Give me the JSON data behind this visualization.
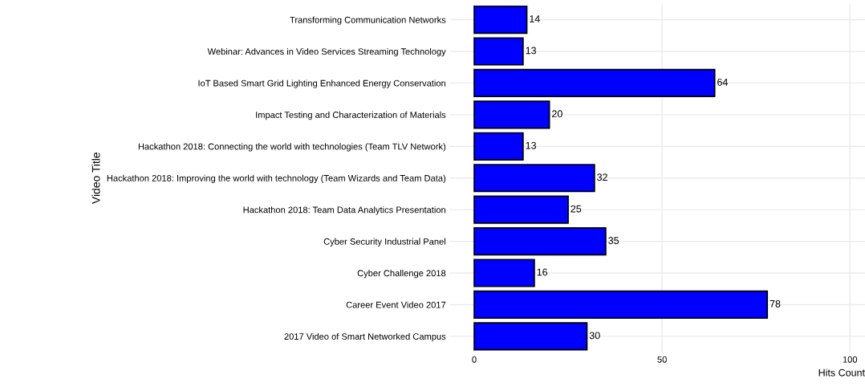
{
  "chart_data": {
    "type": "bar",
    "orientation": "horizontal",
    "xlabel": "Hits Count",
    "ylabel": "Video Title",
    "categories": [
      "Transforming Communication Networks",
      "Webinar: Advances in Video Services Streaming Technology",
      "IoT Based Smart Grid Lighting Enhanced Energy Conservation",
      "Impact Testing and Characterization of Materials",
      "Hackathon 2018: Connecting the world with technologies (Team TLV Network)",
      "Hackathon 2018: Improving the world with technology (Team Wizards and Team Data)",
      "Hackathon 2018: Team Data Analytics Presentation",
      "Cyber Security Industrial Panel",
      "Cyber Challenge 2018",
      "Career Event Video 2017",
      "2017 Video of Smart Networked Campus"
    ],
    "values": [
      14,
      13,
      64,
      20,
      13,
      32,
      25,
      35,
      16,
      78,
      30
    ],
    "color": "#0000ff",
    "data_labels": true,
    "grid": true,
    "xlim": [
      -6.5,
      104
    ],
    "xticks": [
      0,
      50,
      100
    ]
  }
}
